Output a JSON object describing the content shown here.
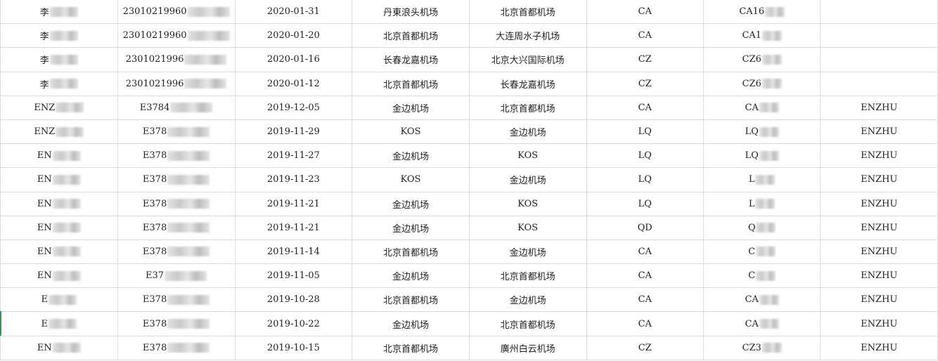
{
  "rows": [
    {
      "name": "李",
      "id": "23010219960",
      "date": "2020-01-31",
      "from": "丹東浪头机场",
      "to": "北京首都机场",
      "airline": "CA",
      "flight": "CA16",
      "pinyin": ""
    },
    {
      "name": "李",
      "id": "23010219960",
      "date": "2020-01-20",
      "from": "北京首都机场",
      "to": "大连周水子机场",
      "airline": "CA",
      "flight": "CA1",
      "pinyin": ""
    },
    {
      "name": "李",
      "id": "2301021996",
      "date": "2020-01-16",
      "from": "长春龙嘉机场",
      "to": "北京大兴国际机场",
      "airline": "CZ",
      "flight": "CZ6",
      "pinyin": ""
    },
    {
      "name": "李",
      "id": "2301021996",
      "date": "2020-01-12",
      "from": "北京首都机场",
      "to": "长春龙嘉机场",
      "airline": "CZ",
      "flight": "CZ6",
      "pinyin": ""
    },
    {
      "name": "ENZ",
      "id": "E3784",
      "date": "2019-12-05",
      "from": "金边机场",
      "to": "北京首都机场",
      "airline": "CA",
      "flight": "CA",
      "pinyin": "ENZHU"
    },
    {
      "name": "ENZ",
      "id": "E378",
      "date": "2019-11-29",
      "from": "KOS",
      "to": "金边机场",
      "airline": "LQ",
      "flight": "LQ",
      "pinyin": "ENZHU"
    },
    {
      "name": "EN",
      "id": "E378",
      "date": "2019-11-27",
      "from": "金边机场",
      "to": "KOS",
      "airline": "LQ",
      "flight": "LQ",
      "pinyin": "ENZHU"
    },
    {
      "name": "EN",
      "id": "E378",
      "date": "2019-11-23",
      "from": "KOS",
      "to": "金边机场",
      "airline": "LQ",
      "flight": "L",
      "pinyin": "ENZHU"
    },
    {
      "name": "EN",
      "id": "E378",
      "date": "2019-11-21",
      "from": "金边机场",
      "to": "KOS",
      "airline": "LQ",
      "flight": "L",
      "pinyin": "ENZHU"
    },
    {
      "name": "EN",
      "id": "E378",
      "date": "2019-11-21",
      "from": "金边机场",
      "to": "KOS",
      "airline": "QD",
      "flight": "Q",
      "pinyin": "ENZHU"
    },
    {
      "name": "EN",
      "id": "E378",
      "date": "2019-11-14",
      "from": "北京首都机场",
      "to": "金边机场",
      "airline": "CA",
      "flight": "C",
      "pinyin": "ENZHU"
    },
    {
      "name": "EN",
      "id": "E37",
      "date": "2019-11-05",
      "from": "金边机场",
      "to": "北京首都机场",
      "airline": "CA",
      "flight": "C",
      "pinyin": "ENZHU"
    },
    {
      "name": "E",
      "id": "E378",
      "date": "2019-10-28",
      "from": "北京首都机场",
      "to": "金边机场",
      "airline": "CA",
      "flight": "CA",
      "pinyin": "ENZHU"
    },
    {
      "name": "E",
      "id": "E378",
      "date": "2019-10-22",
      "from": "金边机场",
      "to": "北京首都机场",
      "airline": "CA",
      "flight": "CA",
      "pinyin": "ENZHU"
    },
    {
      "name": "EN",
      "id": "E378",
      "date": "2019-10-15",
      "from": "北京首都机场",
      "to": "廣州白云机场",
      "airline": "CZ",
      "flight": "CZ3",
      "pinyin": "ENZHU"
    }
  ]
}
